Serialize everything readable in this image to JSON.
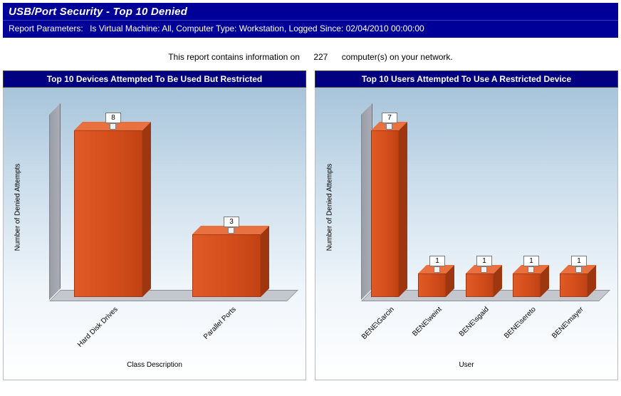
{
  "header": {
    "title": "USB/Port Security - Top 10 Denied",
    "params_label": "Report Parameters:",
    "params_value": "Is Virtual Machine:  All, Computer Type:  Workstation, Logged Since:  02/04/2010 00:00:00"
  },
  "summary": {
    "prefix": "This report contains information on",
    "count": "227",
    "suffix": "computer(s) on your network."
  },
  "chart_data": [
    {
      "type": "bar",
      "title": "Top 10 Devices Attempted To Be Used But Restricted",
      "categories": [
        "Hard Disk Drives",
        "Parallel Ports"
      ],
      "values": [
        8,
        3
      ],
      "xlabel": "Class Description",
      "ylabel": "Number of Denied Attempts",
      "ylim": [
        0,
        8
      ],
      "bar_color": "#d4501c",
      "style": "3d",
      "grid": false,
      "legend": "none"
    },
    {
      "type": "bar",
      "title": "Top 10 Users Attempted To Use A Restricted Device",
      "categories": [
        "BENE\\Garcin",
        "BENE\\weint",
        "BENE\\sgaid",
        "BENE\\sereto",
        "BENE\\mayer"
      ],
      "values": [
        7,
        1,
        1,
        1,
        1
      ],
      "xlabel": "User",
      "ylabel": "Number of Denied Attempts",
      "ylim": [
        0,
        7
      ],
      "bar_color": "#d4501c",
      "style": "3d",
      "grid": false,
      "legend": "none"
    }
  ]
}
